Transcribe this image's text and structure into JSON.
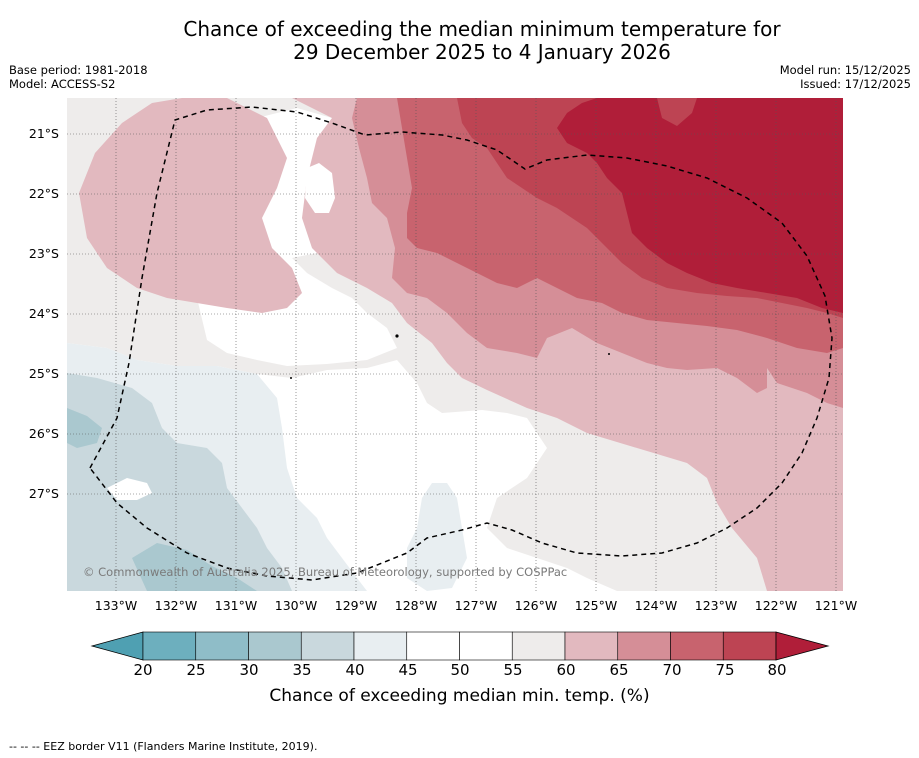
{
  "title_line1": "Chance of exceeding the median minimum temperature for",
  "title_line2": "29 December 2025 to 4 January 2026",
  "base_period": "Base period: 1981-2018",
  "model": "Model: ACCESS-S2",
  "model_run": "Model run: 15/12/2025",
  "issued": "Issued: 17/12/2025",
  "copyright": "© Commonwealth of Australia 2025, Bureau of Meteorology, supported by COSPPac",
  "footnote": "--  --  -- EEZ border V11 (Flanders Marine Institute, 2019).",
  "lat_labels": [
    "21°S",
    "22°S",
    "23°S",
    "24°S",
    "25°S",
    "26°S",
    "27°S"
  ],
  "lon_labels": [
    "133°W",
    "132°W",
    "131°W",
    "130°W",
    "129°W",
    "128°W",
    "127°W",
    "126°W",
    "125°W",
    "124°W",
    "123°W",
    "122°W",
    "121°W"
  ],
  "colorbar": {
    "label": "Chance of exceeding median min. temp. (%)",
    "ticks": [
      "20",
      "25",
      "30",
      "35",
      "40",
      "45",
      "50",
      "55",
      "60",
      "65",
      "70",
      "75",
      "80"
    ],
    "colors": {
      "under": "#4fa0b2",
      "20-25": "#6dafbe",
      "25-30": "#8fbdc8",
      "30-35": "#aac8cf",
      "35-40": "#c9d8dd",
      "40-45": "#e8eef1",
      "45-50": "#ffffff",
      "50-55": "#ffffff",
      "55-60": "#eeeceb",
      "60-65": "#e2b9bf",
      "65-70": "#d58e97",
      "70-75": "#c8636e",
      "75-80": "#bd4453",
      "over": "#b01e39"
    }
  }
}
